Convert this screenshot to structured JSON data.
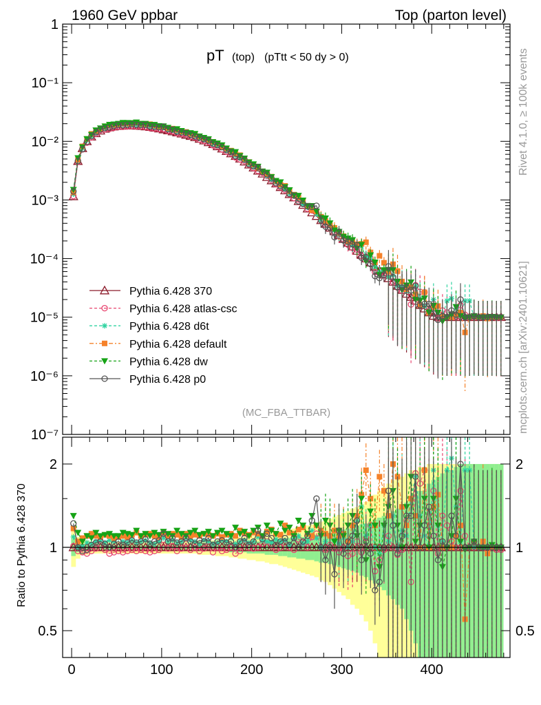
{
  "header": {
    "left": "1960 GeV ppbar",
    "right": "Top (parton level)"
  },
  "title": {
    "main": "pT",
    "sub1": "(top)",
    "sub2": "(pTtt < 50 dy > 0)"
  },
  "watermark": "(MC_FBA_TTBAR)",
  "side_text": {
    "upper": "Rivet 4.1.0, ≥ 100k events",
    "lower": "mcplots.cern.ch [arXiv:2401.10621]"
  },
  "colors": {
    "p370": "#8b1a2a",
    "atlas": "#e8446f",
    "d6t": "#2fd3a0",
    "default": "#f5822a",
    "dw": "#16a316",
    "p0": "#555555",
    "band_outer": "#ffff99",
    "band_inner": "#90ee90"
  },
  "chart_data": [
    {
      "type": "line",
      "scale": "log",
      "xlabel": "",
      "ylabel": "",
      "xlim": [
        -10,
        487
      ],
      "ylim": [
        1e-07,
        1
      ],
      "ytick_labels": [
        "1",
        "10⁻¹",
        "10⁻²",
        "10⁻³",
        "10⁻⁴",
        "10⁻⁵",
        "10⁻⁶",
        "10⁻⁷"
      ],
      "x": [
        2,
        7,
        12,
        17,
        22,
        27,
        32,
        37,
        42,
        47,
        52,
        57,
        62,
        67,
        72,
        77,
        82,
        87,
        92,
        97,
        102,
        107,
        112,
        117,
        122,
        127,
        132,
        137,
        142,
        147,
        152,
        157,
        162,
        167,
        172,
        177,
        182,
        187,
        192,
        197,
        202,
        207,
        212,
        217,
        222,
        227,
        232,
        237,
        242,
        247,
        252,
        257,
        262,
        267,
        272,
        277,
        282,
        287,
        292,
        297,
        302,
        307,
        312,
        317,
        322,
        327,
        332,
        337,
        342,
        347,
        352,
        357,
        362,
        367,
        372,
        377,
        382,
        387,
        392,
        397,
        402,
        407,
        412,
        417,
        422,
        427,
        432,
        437,
        442,
        447,
        452,
        457,
        462,
        467,
        472,
        477
      ],
      "values": [
        0.00115,
        0.0046,
        0.0076,
        0.01,
        0.012,
        0.0137,
        0.0152,
        0.0163,
        0.0172,
        0.0178,
        0.0182,
        0.0184,
        0.0185,
        0.0185,
        0.0184,
        0.0182,
        0.0179,
        0.0175,
        0.017,
        0.0165,
        0.0159,
        0.0153,
        0.0147,
        0.0141,
        0.0135,
        0.0129,
        0.0123,
        0.0117,
        0.011,
        0.0103,
        0.0096,
        0.0089,
        0.0082,
        0.0075,
        0.0068,
        0.0062,
        0.0056,
        0.00505,
        0.0045,
        0.004,
        0.00355,
        0.00315,
        0.0028,
        0.00245,
        0.00215,
        0.0019,
        0.00165,
        0.00145,
        0.00125,
        0.0011,
        0.00095,
        0.00082,
        0.00071,
        0.00061,
        0.00053,
        0.00045,
        0.00039,
        0.000335,
        0.00029,
        0.00025,
        0.000215,
        0.000185,
        0.00016,
        0.000135,
        0.000115,
        0.0001,
        8.5e-05,
        7.2e-05,
        6.2e-05,
        5.3e-05,
        4.6e-05,
        4e-05,
        3.4e-05,
        2.9e-05,
        2.5e-05,
        2.2e-05,
        1.9e-05,
        1.6e-05,
        1.4e-05,
        1.2e-05,
        1.05e-05,
        1e-05,
        1e-05,
        1e-05,
        1e-05,
        1e-05,
        1e-05,
        1e-05,
        1e-05,
        1e-05,
        1e-05,
        1e-05,
        1e-05,
        1e-05,
        1e-05,
        1e-05
      ],
      "series": [
        {
          "name": "Pythia 6.428 370",
          "color_key": "p370",
          "marker": "triangle-open",
          "dash": "solid",
          "ratio": [
            1,
            1,
            1,
            1,
            1,
            1,
            1,
            1,
            1,
            1,
            1,
            1,
            1,
            1,
            1,
            1,
            1,
            1,
            1,
            1,
            1,
            1,
            1,
            1,
            1,
            1,
            1,
            1,
            1,
            1,
            1,
            1,
            1,
            1,
            1,
            1,
            1,
            1,
            1,
            1,
            1,
            1,
            1,
            1,
            1,
            1,
            1,
            1,
            1,
            1,
            1,
            1,
            1,
            1,
            1,
            1,
            1,
            1,
            1,
            1,
            1,
            1,
            1,
            1,
            1,
            1,
            1,
            1,
            1,
            1,
            1,
            1,
            1,
            1,
            1,
            1,
            1,
            1,
            1,
            1,
            1,
            1,
            1,
            1,
            1,
            1,
            1,
            1,
            1,
            1,
            1,
            1,
            1,
            1,
            1,
            1
          ]
        },
        {
          "name": "Pythia 6.428 atlas-csc",
          "color_key": "atlas",
          "marker": "circle-open",
          "dash": "dashed",
          "ratio": [
            1.01,
            0.97,
            0.96,
            0.95,
            0.97,
            0.99,
            1.02,
            0.98,
            0.95,
            0.96,
            0.97,
            0.96,
            0.97,
            0.98,
            0.97,
            0.98,
            0.97,
            0.96,
            0.97,
            0.98,
            1.02,
            0.99,
            1.01,
            0.97,
            0.99,
            1.03,
            0.98,
            1.0,
            0.97,
            0.99,
            1.01,
            0.96,
            1.0,
            0.97,
            0.98,
            1.0,
            0.95,
            0.97,
            1.02,
            1.0,
            0.99,
            1.0,
            1.03,
            1.05,
            1.01,
            0.98,
            1.0,
            1.02,
            1.0,
            0.98,
            1.07,
            1.04,
            1.0,
            1.09,
            1.12,
            1.0,
            0.98,
            1.02,
            0.99,
            0.96,
            1.0,
            0.93,
            0.95,
            1.05,
            0.96,
            1.08,
            1.2,
            0.82,
            0.9,
            0.98,
            1.1,
            1.0,
            0.94,
            0.98,
            1.25,
            0.75,
            1.85,
            1.7,
            1.9,
            1.1,
            1.6,
            0.95,
            1.3,
            1.2,
            1.05,
            1.0,
            1.6,
            1.1,
            1.0,
            1.0,
            1.0,
            1.0,
            0.98,
            1.0,
            0.98,
            0.98
          ]
        },
        {
          "name": "Pythia 6.428 d6t",
          "color_key": "d6t",
          "marker": "star",
          "dash": "dashed",
          "ratio": [
            1.09,
            1.0,
            1.01,
            1.04,
            1.03,
            1.05,
            1.06,
            1.04,
            1.06,
            1.05,
            1.08,
            1.05,
            1.04,
            1.06,
            1.04,
            1.05,
            1.06,
            1.04,
            1.03,
            1.05,
            1.08,
            1.05,
            1.06,
            1.04,
            1.05,
            1.08,
            1.06,
            1.05,
            1.03,
            1.06,
            1.05,
            1.03,
            1.04,
            1.06,
            1.05,
            1.08,
            1.03,
            1.05,
            1.06,
            1.04,
            1.05,
            1.09,
            1.06,
            1.05,
            1.04,
            1.07,
            1.05,
            1.06,
            1.02,
            1.08,
            1.1,
            1.03,
            1.05,
            1.15,
            1.08,
            1.0,
            1.05,
            1.1,
            1.06,
            1.03,
            1.08,
            1.0,
            1.05,
            1.25,
            1.4,
            1.1,
            1.2,
            1.0,
            0.95,
            1.2,
            1.05,
            1.3,
            1.0,
            1.15,
            1.1,
            1.5,
            1.8,
            1.3,
            1.1,
            1.0,
            1.9,
            1.2,
            1.05,
            1.9,
            2.1,
            1.4,
            1.05,
            1.9,
            1.9,
            1.0,
            1.0,
            1.0,
            1.0,
            1.0,
            1.0,
            1.0
          ]
        },
        {
          "name": "Pythia 6.428 default",
          "color_key": "default",
          "marker": "square",
          "dash": "dashdot",
          "ratio": [
            1.17,
            1.05,
            1.08,
            1.1,
            1.12,
            1.1,
            1.09,
            1.11,
            1.1,
            1.08,
            1.09,
            1.1,
            1.09,
            1.11,
            1.13,
            1.1,
            1.11,
            1.12,
            1.1,
            1.09,
            1.13,
            1.1,
            1.12,
            1.11,
            1.09,
            1.12,
            1.1,
            1.11,
            1.1,
            1.12,
            1.11,
            1.1,
            1.12,
            1.09,
            1.11,
            1.12,
            1.1,
            1.15,
            1.12,
            1.11,
            1.13,
            1.12,
            1.1,
            1.14,
            1.16,
            1.12,
            1.11,
            1.2,
            1.13,
            1.12,
            1.16,
            1.18,
            1.12,
            1.1,
            1.2,
            1.15,
            1.12,
            1.1,
            1.15,
            1.1,
            1.12,
            1.05,
            1.2,
            1.3,
            1.55,
            1.9,
            1.5,
            1.2,
            1.8,
            1.6,
            1.3,
            2.0,
            1.8,
            1.4,
            1.2,
            1.5,
            1.3,
            1.0,
            1.9,
            1.0,
            1.4,
            1.55,
            1.0,
            1.0,
            1.0,
            1.1,
            1.2,
            0.55,
            1.0,
            1.05,
            1.0,
            1.05,
            0.95,
            1.0,
            1.0,
            1.0
          ]
        },
        {
          "name": "Pythia 6.428 dw",
          "color_key": "dw",
          "marker": "triangle-down",
          "dash": "dashed",
          "ratio": [
            1.3,
            1.13,
            1.05,
            1.1,
            1.08,
            1.13,
            1.1,
            1.11,
            1.12,
            1.1,
            1.1,
            1.13,
            1.12,
            1.11,
            1.15,
            1.1,
            1.12,
            1.1,
            1.13,
            1.11,
            1.14,
            1.12,
            1.1,
            1.15,
            1.12,
            1.1,
            1.13,
            1.15,
            1.11,
            1.12,
            1.14,
            1.1,
            1.13,
            1.15,
            1.12,
            1.1,
            1.18,
            1.12,
            1.14,
            1.1,
            1.15,
            1.18,
            1.1,
            1.2,
            1.15,
            1.12,
            1.22,
            1.15,
            1.18,
            1.1,
            1.25,
            1.2,
            1.12,
            1.3,
            1.2,
            1.1,
            1.25,
            1.2,
            1.05,
            1.15,
            1.1,
            1.2,
            1.3,
            1.1,
            1.5,
            0.9,
            1.35,
            1.2,
            0.85,
            1.2,
            1.4,
            1.6,
            1.2,
            1.0,
            1.4,
            1.8,
            1.05,
            1.2,
            1.5,
            1.0,
            1.5,
            1.2,
            0.85,
            1.0,
            1.1,
            1.5,
            1.05,
            0.98,
            1.0,
            1.05,
            1.0,
            1.0,
            1.0,
            1.02,
            1.0,
            1.0
          ]
        },
        {
          "name": "Pythia 6.428 p0",
          "color_key": "p0",
          "marker": "circle-open",
          "dash": "solid",
          "ratio": [
            1.22,
            1.0,
            0.97,
            0.98,
            1.02,
            1.04,
            1.05,
            1.03,
            1.0,
            1.03,
            1.05,
            1.02,
            1.04,
            1.06,
            1.04,
            1.05,
            1.07,
            1.03,
            1.05,
            1.06,
            1.12,
            1.05,
            1.08,
            1.04,
            1.05,
            1.08,
            1.05,
            1.03,
            1.06,
            1.05,
            1.08,
            1.02,
            1.05,
            1.06,
            1.04,
            1.05,
            1.0,
            1.05,
            1.08,
            1.02,
            1.05,
            1.15,
            1.07,
            1.12,
            1.08,
            1.02,
            1.05,
            1.08,
            1.02,
            1.08,
            1.0,
            1.05,
            1.1,
            1.25,
            1.5,
            1.0,
            0.9,
            1.0,
            0.8,
            1.15,
            0.95,
            1.05,
            1.1,
            1.25,
            0.9,
            1.05,
            0.95,
            0.7,
            0.75,
            1.0,
            1.6,
            1.2,
            0.95,
            1.1,
            1.3,
            1.3,
            1.8,
            1.0,
            1.2,
            1.4,
            1.1,
            0.9,
            1.05,
            1.0,
            1.3,
            1.1,
            2.0,
            1.0,
            1.0,
            1.05,
            1.0,
            1.0,
            1.0,
            1.0,
            1.0,
            1.0
          ]
        }
      ]
    },
    {
      "type": "line",
      "scale": "log",
      "ylabel": "Ratio to Pythia 6.428 370",
      "xlim": [
        -10,
        487
      ],
      "ylim": [
        0.4,
        2.5
      ],
      "ytick_labels": [
        "0.5",
        "1",
        "2"
      ],
      "xtick_labels": [
        "0",
        "100",
        "200",
        "300",
        "400"
      ],
      "band_outer_halfwidth": [
        0.15,
        0.09,
        0.06,
        0.06,
        0.05,
        0.05,
        0.05,
        0.05,
        0.05,
        0.05,
        0.05,
        0.05,
        0.05,
        0.05,
        0.05,
        0.05,
        0.05,
        0.05,
        0.05,
        0.05,
        0.05,
        0.05,
        0.05,
        0.05,
        0.05,
        0.05,
        0.05,
        0.05,
        0.06,
        0.06,
        0.06,
        0.06,
        0.07,
        0.07,
        0.07,
        0.08,
        0.08,
        0.09,
        0.09,
        0.1,
        0.1,
        0.11,
        0.11,
        0.12,
        0.13,
        0.13,
        0.14,
        0.15,
        0.16,
        0.17,
        0.18,
        0.19,
        0.2,
        0.21,
        0.22,
        0.24,
        0.25,
        0.27,
        0.29,
        0.31,
        0.33,
        0.35,
        0.38,
        0.4,
        0.43,
        0.46,
        0.5,
        0.55,
        0.6,
        0.65,
        0.7,
        0.75,
        0.8,
        0.8,
        0.85,
        0.9,
        0.9,
        0.95,
        0.95,
        1,
        1,
        1,
        1,
        1,
        1,
        1,
        1,
        1,
        1,
        1,
        1,
        1,
        1,
        1,
        1,
        1
      ],
      "band_inner_halfwidth": [
        0.07,
        0.04,
        0.03,
        0.03,
        0.02,
        0.02,
        0.02,
        0.02,
        0.02,
        0.02,
        0.02,
        0.02,
        0.02,
        0.02,
        0.02,
        0.02,
        0.02,
        0.02,
        0.02,
        0.02,
        0.02,
        0.02,
        0.02,
        0.02,
        0.02,
        0.02,
        0.02,
        0.02,
        0.03,
        0.03,
        0.03,
        0.03,
        0.03,
        0.03,
        0.03,
        0.04,
        0.04,
        0.04,
        0.04,
        0.05,
        0.05,
        0.05,
        0.05,
        0.06,
        0.06,
        0.06,
        0.07,
        0.07,
        0.08,
        0.08,
        0.09,
        0.09,
        0.1,
        0.1,
        0.11,
        0.12,
        0.12,
        0.13,
        0.14,
        0.15,
        0.16,
        0.17,
        0.18,
        0.19,
        0.21,
        0.22,
        0.24,
        0.26,
        0.28,
        0.3,
        0.33,
        0.35,
        0.38,
        0.4,
        0.45,
        0.5,
        0.55,
        0.6,
        0.6,
        0.7,
        0.75,
        0.8,
        0.85,
        0.9,
        0.9,
        0.95,
        1,
        1,
        1,
        1,
        1,
        1,
        1,
        1,
        1,
        1
      ]
    }
  ]
}
